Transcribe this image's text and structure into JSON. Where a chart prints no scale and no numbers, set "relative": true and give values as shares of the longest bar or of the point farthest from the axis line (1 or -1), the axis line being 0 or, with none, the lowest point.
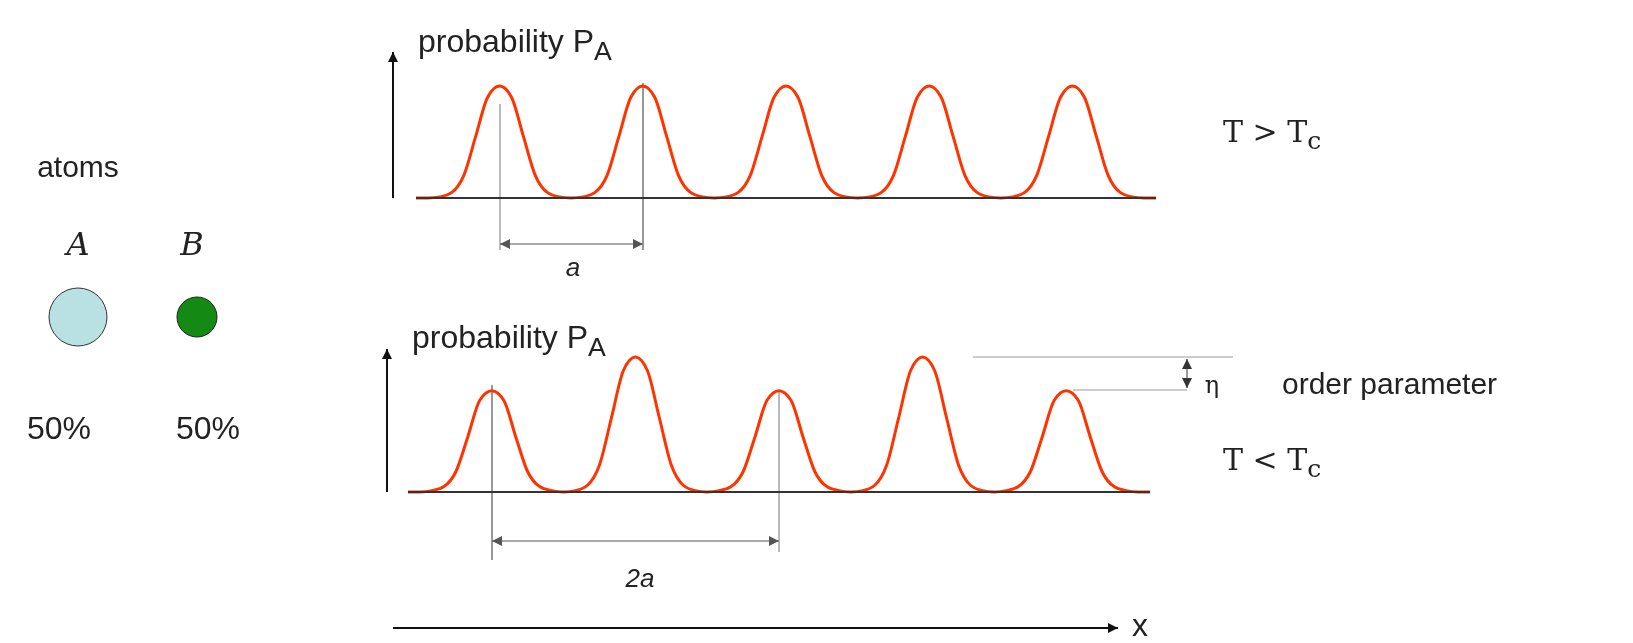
{
  "chart_data": [
    {
      "type": "line",
      "relative": true,
      "ylabel": "probability P$_{A}$",
      "annotations": [
        "atoms",
        "A",
        "B",
        "50%",
        "50%",
        "a",
        "T > T$_{c}$"
      ],
      "categories": [
        null,
        null,
        null,
        null,
        null,
        null,
        null,
        null,
        null,
        null,
        null,
        null,
        null,
        null,
        null,
        null,
        null,
        null,
        null,
        null,
        null,
        null,
        null,
        null,
        null,
        null,
        null,
        null,
        null,
        null,
        null,
        null,
        null,
        null,
        null,
        null,
        null,
        null,
        null,
        null,
        null,
        null,
        null,
        null,
        null,
        null,
        null,
        null,
        null,
        null,
        null,
        null,
        null,
        null,
        null,
        null,
        null,
        null,
        null,
        null,
        null,
        null,
        null
      ],
      "series": [
        {
          "color": "#ff3300",
          "values": [
            0,
            0,
            0.01,
            0.05,
            0.2,
            0.55,
            0.9,
            1,
            0.9,
            0.55,
            0.2,
            0.05,
            0.01,
            0,
            0.01,
            0.05,
            0.2,
            0.55,
            0.9,
            1,
            0.9,
            0.55,
            0.2,
            0.05,
            0.01,
            0,
            0.01,
            0.05,
            0.2,
            0.55,
            0.9,
            1,
            0.9,
            0.55,
            0.2,
            0.05,
            0.01,
            0,
            0.01,
            0.05,
            0.2,
            0.55,
            0.9,
            1,
            0.9,
            0.55,
            0.2,
            0.05,
            0.01,
            0,
            0.01,
            0.05,
            0.2,
            0.55,
            0.9,
            1,
            0.9,
            0.55,
            0.2,
            0.05,
            0.01,
            0,
            0
          ]
        }
      ]
    },
    {
      "type": "line",
      "relative": true,
      "ylabel": "probability P$_{A}$",
      "xlabel": "x",
      "annotations": [
        "2a",
        "η",
        "order parameter",
        "T < T$_{c}$"
      ],
      "categories": [
        null,
        null,
        null,
        null,
        null,
        null,
        null,
        null,
        null,
        null,
        null,
        null,
        null,
        null,
        null,
        null,
        null,
        null,
        null,
        null,
        null,
        null,
        null,
        null,
        null,
        null,
        null,
        null,
        null,
        null,
        null,
        null,
        null,
        null,
        null,
        null,
        null,
        null,
        null,
        null,
        null,
        null,
        null,
        null,
        null,
        null,
        null,
        null,
        null,
        null,
        null,
        null,
        null,
        null,
        null,
        null,
        null,
        null,
        null,
        null,
        null,
        null,
        null
      ],
      "series": [
        {
          "color": "#ff3300",
          "values": [
            0,
            0,
            0.01,
            0.04,
            0.15,
            0.41,
            0.68,
            0.75,
            0.68,
            0.41,
            0.15,
            0.04,
            0.01,
            0,
            0.01,
            0.05,
            0.2,
            0.55,
            0.9,
            1,
            0.9,
            0.55,
            0.2,
            0.05,
            0.01,
            0,
            0.01,
            0.04,
            0.15,
            0.41,
            0.68,
            0.75,
            0.68,
            0.41,
            0.15,
            0.04,
            0.01,
            0,
            0.01,
            0.05,
            0.2,
            0.55,
            0.9,
            1,
            0.9,
            0.55,
            0.2,
            0.05,
            0.01,
            0,
            0.01,
            0.04,
            0.15,
            0.41,
            0.68,
            0.75,
            0.68,
            0.41,
            0.15,
            0.04,
            0.01,
            0,
            0
          ]
        }
      ]
    }
  ]
}
